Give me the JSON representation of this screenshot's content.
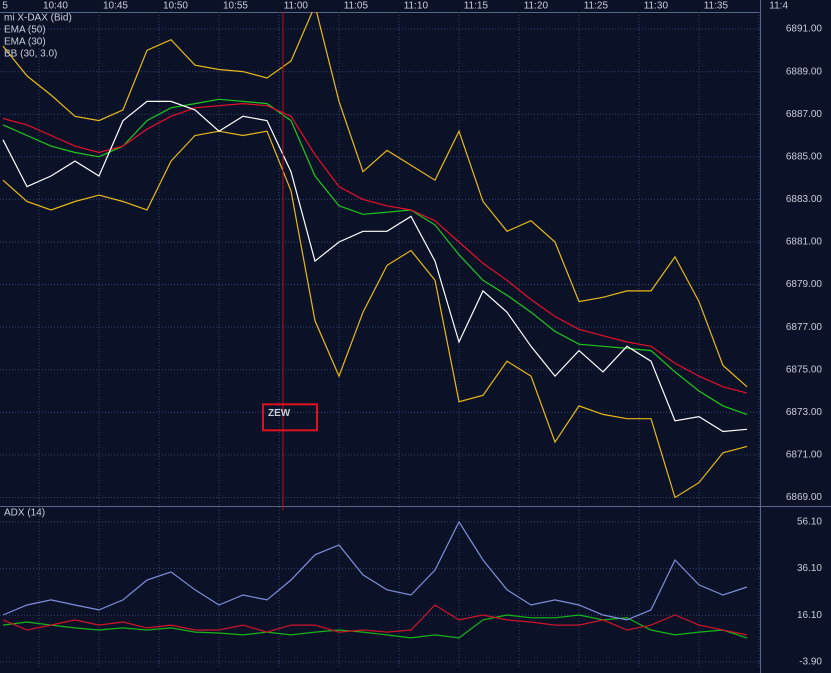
{
  "chart_data": [
    {
      "type": "line",
      "x": [
        37,
        39,
        41,
        43,
        45,
        47,
        49,
        51,
        53,
        55,
        57,
        59,
        61,
        63,
        65,
        67,
        69,
        71,
        73,
        75,
        77,
        79,
        81,
        83,
        85,
        87,
        89,
        91,
        93,
        95,
        97,
        99
      ],
      "xlim": [
        36.75,
        100.08
      ],
      "xticks": [
        {
          "value": 35,
          "label": "5"
        },
        {
          "value": 40,
          "label": "10:40"
        },
        {
          "value": 45,
          "label": "10:45"
        },
        {
          "value": 50,
          "label": "10:50"
        },
        {
          "value": 55,
          "label": "10:55"
        },
        {
          "value": 60,
          "label": "11:00"
        },
        {
          "value": 65,
          "label": "11:05"
        },
        {
          "value": 70,
          "label": "11:10"
        },
        {
          "value": 75,
          "label": "11:15"
        },
        {
          "value": 80,
          "label": "11:20"
        },
        {
          "value": 85,
          "label": "11:25"
        },
        {
          "value": 90,
          "label": "11:30"
        },
        {
          "value": 95,
          "label": "11:35"
        },
        {
          "value": 100,
          "label": "11:4"
        }
      ],
      "ylim": [
        6868.6,
        6891.8
      ],
      "yticks": [
        {
          "value": 6891,
          "label": "6891.00"
        },
        {
          "value": 6889,
          "label": "6889.00"
        },
        {
          "value": 6887,
          "label": "6887.00"
        },
        {
          "value": 6885,
          "label": "6885.00"
        },
        {
          "value": 6883,
          "label": "6883.00"
        },
        {
          "value": 6881,
          "label": "6881.00"
        },
        {
          "value": 6879,
          "label": "6879.00"
        },
        {
          "value": 6877,
          "label": "6877.00"
        },
        {
          "value": 6875,
          "label": "6875.00"
        },
        {
          "value": 6873,
          "label": "6873.00"
        },
        {
          "value": 6871,
          "label": "6871.00"
        },
        {
          "value": 6869,
          "label": "6869.00"
        }
      ],
      "grid": true,
      "series": [
        {
          "name": "mi X-DAX (Bid)",
          "color": "#ffffff",
          "values": [
            6885.8,
            6883.6,
            6884.1,
            6884.8,
            6884.1,
            6886.7,
            6887.6,
            6887.6,
            6887.2,
            6886.2,
            6886.9,
            6886.7,
            6884.3,
            6880.1,
            6881.0,
            6881.5,
            6881.5,
            6882.2,
            6880.1,
            6876.3,
            6878.7,
            6877.7,
            6876.1,
            6874.7,
            6875.9,
            6874.9,
            6876.1,
            6875.4,
            6872.6,
            6872.8,
            6872.1,
            6872.2
          ]
        },
        {
          "name": "EMA (50)",
          "color": "#e8102a",
          "values": [
            6886.8,
            6886.5,
            6886.0,
            6885.5,
            6885.2,
            6885.5,
            6886.3,
            6886.9,
            6887.3,
            6887.4,
            6887.5,
            6887.4,
            6886.9,
            6885.1,
            6883.6,
            6883.0,
            6882.7,
            6882.5,
            6882.0,
            6881.0,
            6880.0,
            6879.2,
            6878.3,
            6877.5,
            6876.9,
            6876.6,
            6876.3,
            6876.1,
            6875.3,
            6874.7,
            6874.2,
            6873.9
          ]
        },
        {
          "name": "EMA (30)",
          "color": "#1fc81f",
          "values": [
            6886.5,
            6886.0,
            6885.5,
            6885.2,
            6885.0,
            6885.5,
            6886.7,
            6887.3,
            6887.5,
            6887.7,
            6887.6,
            6887.5,
            6886.7,
            6884.1,
            6882.7,
            6882.3,
            6882.4,
            6882.5,
            6881.8,
            6880.4,
            6879.2,
            6878.5,
            6877.7,
            6876.8,
            6876.2,
            6876.1,
            6876.0,
            6875.9,
            6874.9,
            6874.0,
            6873.3,
            6872.9
          ]
        },
        {
          "name": "BB (30, 3.0)",
          "color": "#e8b81a",
          "upper": [
            6890.2,
            6888.8,
            6887.9,
            6886.9,
            6886.7,
            6887.2,
            6890.0,
            6890.5,
            6889.3,
            6889.1,
            6889.0,
            6888.7,
            6889.5,
            6892.1,
            6887.6,
            6884.3,
            6885.3,
            6884.6,
            6883.9,
            6886.2,
            6882.9,
            6881.5,
            6882.0,
            6881.0,
            6878.2,
            6878.4,
            6878.7,
            6878.7,
            6880.3,
            6878.2,
            6875.2,
            6874.2
          ],
          "lower": [
            6883.9,
            6882.9,
            6882.5,
            6882.9,
            6883.2,
            6882.9,
            6882.5,
            6884.8,
            6886.0,
            6886.2,
            6886.0,
            6886.2,
            6883.4,
            6877.3,
            6874.7,
            6877.7,
            6879.9,
            6880.6,
            6879.2,
            6873.5,
            6873.8,
            6875.4,
            6874.7,
            6871.6,
            6873.3,
            6872.9,
            6872.7,
            6872.7,
            6869.0,
            6869.7,
            6871.1,
            6871.4
          ]
        }
      ],
      "events": [
        {
          "x": 60.33,
          "label": "ZEW",
          "y": 6873.0
        }
      ]
    },
    {
      "type": "line",
      "x": [
        37,
        39,
        41,
        43,
        45,
        47,
        49,
        51,
        53,
        55,
        57,
        59,
        61,
        63,
        65,
        67,
        69,
        71,
        73,
        75,
        77,
        79,
        81,
        83,
        85,
        87,
        89,
        91,
        93,
        95,
        97,
        99
      ],
      "xlim": [
        36.75,
        100.08
      ],
      "ylim": [
        -6.5,
        62.5
      ],
      "yticks": [
        {
          "value": 56.1,
          "label": "56.10"
        },
        {
          "value": 36.1,
          "label": "36.10"
        },
        {
          "value": 16.1,
          "label": "16.10"
        },
        {
          "value": -3.9,
          "label": "-3.90"
        }
      ],
      "grid": true,
      "series": [
        {
          "name": "ADX (14)",
          "color": "#7f8ed8",
          "values": [
            16.2,
            20.5,
            22.7,
            20.5,
            18.4,
            22.7,
            31.2,
            34.7,
            27.0,
            20.5,
            24.8,
            22.7,
            31.2,
            42.0,
            46.2,
            33.4,
            27.0,
            24.8,
            35.5,
            56.1,
            39.8,
            27.0,
            20.5,
            22.7,
            20.5,
            16.2,
            14.1,
            18.4,
            39.8,
            29.1,
            24.8,
            28.2
          ]
        },
        {
          "color": "#d0142a",
          "values": [
            14.1,
            9.8,
            11.9,
            14.1,
            11.9,
            13.2,
            10.7,
            11.9,
            9.8,
            9.8,
            11.9,
            8.9,
            11.9,
            11.9,
            8.9,
            9.8,
            8.9,
            9.8,
            20.5,
            14.1,
            16.2,
            14.1,
            13.2,
            11.9,
            11.9,
            14.1,
            9.8,
            11.9,
            16.2,
            11.9,
            9.8,
            7.7
          ]
        },
        {
          "color": "#18b418",
          "values": [
            11.9,
            13.2,
            11.9,
            10.7,
            9.8,
            10.7,
            9.8,
            10.7,
            8.9,
            8.5,
            7.7,
            8.9,
            7.7,
            8.9,
            9.8,
            8.9,
            7.7,
            6.4,
            7.7,
            6.4,
            14.1,
            16.2,
            15.0,
            15.0,
            16.2,
            14.1,
            15.0,
            9.8,
            7.7,
            8.9,
            9.8,
            6.4
          ]
        }
      ]
    }
  ]
}
